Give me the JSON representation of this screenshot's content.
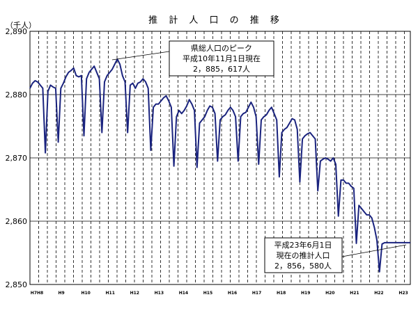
{
  "chart_data": {
    "type": "line",
    "title": "推 計 人 口 の 推 移",
    "ylabel": "（千人）",
    "xlabel": "",
    "ylim": [
      2850,
      2890
    ],
    "yticks": [
      "2,850",
      "2,860",
      "2,870",
      "2,880",
      "2,890"
    ],
    "ytick_values": [
      2850,
      2860,
      2870,
      2880,
      2890
    ],
    "xlim": [
      0,
      148
    ],
    "x_categories": [
      "H7H8",
      "H9",
      "H10",
      "H11",
      "H12",
      "H13",
      "H14",
      "H15",
      "H16",
      "H17",
      "H18",
      "H19",
      "H20",
      "H21",
      "H22",
      "H23"
    ],
    "grid": true,
    "series": [
      {
        "name": "",
        "color": "#1a237e",
        "x": [
          0,
          1,
          2,
          3,
          4,
          5,
          6,
          7,
          8,
          9,
          10,
          11,
          12,
          13,
          14,
          15,
          16,
          17,
          18,
          19,
          20,
          21,
          22,
          23,
          24,
          25,
          26,
          27,
          28,
          29,
          30,
          31,
          32,
          33,
          34,
          35,
          36,
          37,
          38,
          39,
          40,
          41,
          42,
          43,
          44,
          45,
          46,
          47,
          48,
          49,
          50,
          51,
          52,
          53,
          54,
          55,
          56,
          57,
          58,
          59,
          60,
          61,
          62,
          63,
          64,
          65,
          66,
          67,
          68,
          69,
          70,
          71,
          72,
          73,
          74,
          75,
          76,
          77,
          78,
          79,
          80,
          81,
          82,
          83,
          84,
          85,
          86,
          87,
          88,
          89,
          90,
          91,
          92,
          93,
          94,
          95,
          96,
          97,
          98,
          99,
          100,
          101,
          102,
          103,
          104,
          105,
          106,
          107,
          108,
          109,
          110,
          111,
          112,
          113,
          114,
          115,
          116,
          117,
          118,
          119,
          120,
          121,
          122,
          123,
          124,
          125,
          126,
          127,
          128,
          129,
          130,
          131,
          132,
          133,
          134,
          135,
          136,
          137,
          138,
          139,
          140,
          141,
          142,
          143,
          144,
          145,
          146,
          147,
          148
        ],
        "values": [
          2881.0,
          2881.8,
          2882.2,
          2882.0,
          2881.5,
          2881.0,
          2870.8,
          2880.5,
          2881.5,
          2881.2,
          2881.0,
          2872.5,
          2881.0,
          2881.8,
          2882.8,
          2883.5,
          2883.8,
          2884.2,
          2883.0,
          2882.8,
          2883.0,
          2873.5,
          2882.5,
          2883.5,
          2884.0,
          2884.5,
          2883.5,
          2882.5,
          2874.0,
          2882.0,
          2883.0,
          2883.5,
          2884.0,
          2884.8,
          2885.6,
          2884.8,
          2883.0,
          2882.0,
          2874.0,
          2881.5,
          2881.8,
          2881.0,
          2881.8,
          2882.0,
          2882.5,
          2882.0,
          2881.0,
          2871.2,
          2878.0,
          2878.5,
          2878.5,
          2879.0,
          2879.5,
          2879.8,
          2879.0,
          2878.0,
          2868.7,
          2876.5,
          2877.5,
          2877.0,
          2877.5,
          2878.2,
          2879.2,
          2878.5,
          2877.5,
          2868.5,
          2875.5,
          2876.0,
          2876.5,
          2877.5,
          2878.2,
          2878.0,
          2877.0,
          2869.5,
          2876.0,
          2876.5,
          2876.8,
          2877.5,
          2878.0,
          2877.5,
          2876.5,
          2869.5,
          2876.5,
          2877.0,
          2877.2,
          2878.0,
          2878.8,
          2878.0,
          2876.5,
          2869.0,
          2876.0,
          2876.5,
          2876.8,
          2877.5,
          2878.0,
          2877.0,
          2876.0,
          2867.0,
          2874.0,
          2874.5,
          2874.8,
          2875.5,
          2876.2,
          2876.0,
          2874.5,
          2866.2,
          2873.0,
          2873.5,
          2873.8,
          2874.0,
          2873.5,
          2873.0,
          2864.8,
          2869.5,
          2869.8,
          2870.0,
          2869.8,
          2869.5,
          2870.0,
          2869.0,
          2860.8,
          2866.5,
          2866.5,
          2866.0,
          2866.0,
          2865.5,
          2865.2,
          2856.5,
          2862.5,
          2862.0,
          2861.5,
          2861.0,
          2861.0,
          2860.5,
          2859.0,
          2857.0,
          2852.0,
          2856.4,
          2856.6,
          2856.6,
          2856.6,
          2856.6,
          2856.6,
          2856.6,
          2856.6,
          2856.6,
          2856.6,
          2856.6,
          2856.6
        ]
      }
    ],
    "annotations": [
      {
        "lines": [
          "県総人口のピーク",
          "平成10年11月1日現在",
          "2，885，617人"
        ]
      },
      {
        "lines": [
          "平成23年6月1日",
          "現在の推計人口",
          "2，856，580人"
        ]
      }
    ]
  }
}
